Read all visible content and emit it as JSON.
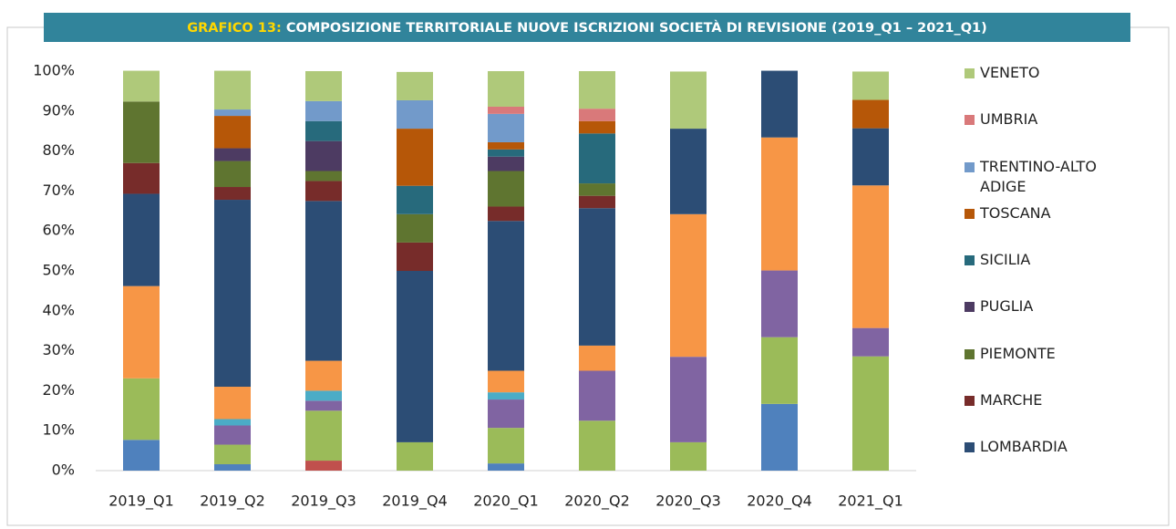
{
  "chart_data": {
    "type": "stacked-bar",
    "label": "GRAFICO 13:",
    "title": "COMPOSIZIONE TERRITORIALE NUOVE ISCRIZIONI SOCIETÀ DI REVISIONE (2019_Q1 – 2021_Q1)",
    "categories": [
      "2019_Q1",
      "2019_Q2",
      "2019_Q3",
      "2019_Q4",
      "2020_Q1",
      "2020_Q2",
      "2020_Q3",
      "2020_Q4",
      "2021_Q1"
    ],
    "series": [
      {
        "color": "#4f81bd",
        "values": [
          7.7,
          1.6,
          0,
          0,
          1.8,
          0,
          0,
          16.7,
          0
        ]
      },
      {
        "color": "#c0504d",
        "values": [
          0,
          0,
          2.5,
          0,
          0,
          0,
          0,
          0,
          0
        ]
      },
      {
        "color": "#9bbb59",
        "values": [
          15.4,
          4.9,
          12.5,
          7.1,
          8.9,
          12.5,
          7.1,
          16.7,
          28.6
        ]
      },
      {
        "color": "#8064a2",
        "values": [
          0,
          4.8,
          2.5,
          0,
          7.1,
          12.5,
          21.4,
          16.7,
          7.1
        ]
      },
      {
        "color": "#4bacc6",
        "values": [
          0,
          1.6,
          2.5,
          0,
          1.8,
          0,
          0,
          0,
          0
        ]
      },
      {
        "color": "#f79646",
        "values": [
          23.1,
          8.1,
          7.5,
          0,
          5.4,
          6.3,
          35.7,
          33.3,
          35.7
        ]
      },
      {
        "name": "LOMBARDIA",
        "color": "#2c4d75",
        "values": [
          23.1,
          46.8,
          40,
          42.9,
          37.5,
          34.4,
          21.4,
          16.7,
          14.3
        ]
      },
      {
        "name": "MARCHE",
        "color": "#772c2a",
        "values": [
          7.7,
          3.2,
          5,
          7.1,
          3.6,
          3.1,
          0,
          0,
          0
        ]
      },
      {
        "name": "PIEMONTE",
        "color": "#5f7530",
        "values": [
          15.4,
          6.5,
          2.5,
          7.1,
          8.9,
          3.1,
          0,
          0,
          0
        ]
      },
      {
        "name": "PUGLIA",
        "color": "#4d3b62",
        "values": [
          0,
          3.2,
          7.5,
          0,
          3.6,
          0,
          0,
          0,
          0
        ]
      },
      {
        "name": "SICILIA",
        "color": "#276a7c",
        "values": [
          0,
          0,
          5,
          7.1,
          1.8,
          12.5,
          0,
          0,
          0
        ]
      },
      {
        "name": "TOSCANA",
        "color": "#b65708",
        "values": [
          0,
          8.1,
          0,
          14.3,
          1.8,
          3.1,
          0,
          0,
          7.1
        ]
      },
      {
        "name": "TRENTINO-ALTO ADIGE",
        "color": "#729aca",
        "values": [
          0,
          1.6,
          5,
          7.1,
          7.1,
          0,
          0,
          0,
          0
        ]
      },
      {
        "name": "UMBRIA",
        "color": "#d9797a",
        "values": [
          0,
          0,
          0,
          0,
          1.8,
          3.1,
          0,
          0,
          0
        ]
      },
      {
        "name": "VENETO",
        "color": "#afc97a",
        "values": [
          7.7,
          9.7,
          7.5,
          7.1,
          8.9,
          9.4,
          14.3,
          0,
          7.1
        ]
      }
    ],
    "ylim": [
      0,
      100
    ],
    "yticks": [
      {
        "value": 0,
        "label": "0%"
      },
      {
        "value": 10,
        "label": "10%"
      },
      {
        "value": 20,
        "label": "20%"
      },
      {
        "value": 30,
        "label": "30%"
      },
      {
        "value": 40,
        "label": "40%"
      },
      {
        "value": 50,
        "label": "50%"
      },
      {
        "value": 60,
        "label": "60%"
      },
      {
        "value": 70,
        "label": "70%"
      },
      {
        "value": 80,
        "label": "80%"
      },
      {
        "value": 90,
        "label": "90%"
      },
      {
        "value": 100,
        "label": "100%"
      }
    ],
    "grid": false
  }
}
